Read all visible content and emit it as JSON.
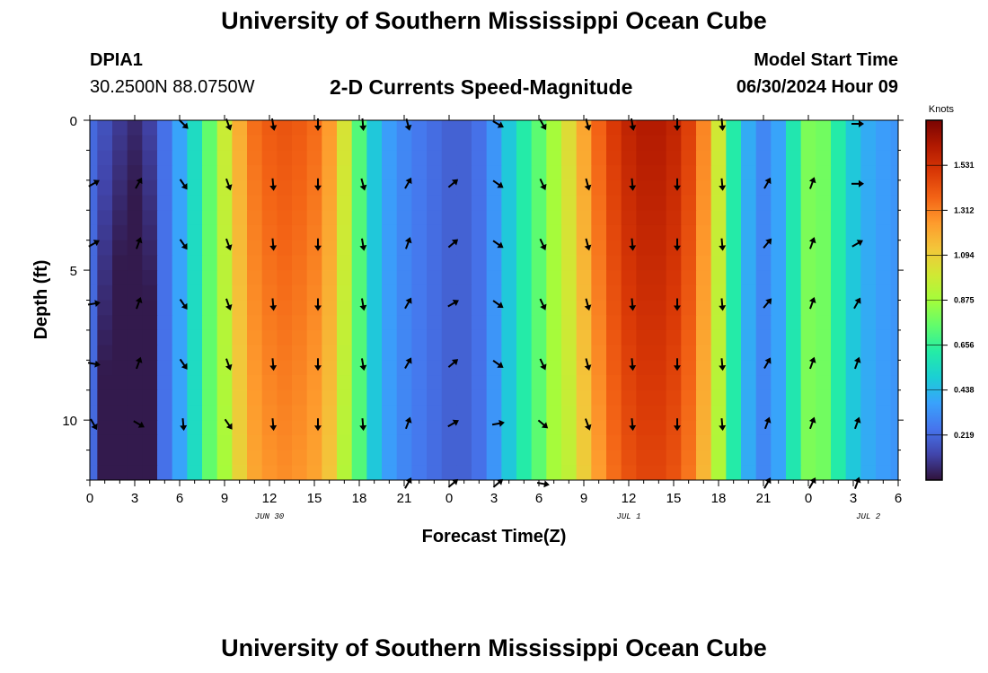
{
  "header": {
    "title": "University of Southern Mississippi Ocean Cube",
    "station_id": "DPIA1",
    "coordinates": "30.2500N  88.0750W",
    "subtitle": "2-D Currents Speed-Magnitude",
    "model_start_label": "Model Start Time",
    "model_start_value": "06/30/2024 Hour 09"
  },
  "footer": {
    "title": "University of Southern Mississippi Ocean Cube"
  },
  "colors": {
    "palette": [
      "#30123b",
      "#4145ab",
      "#4675ed",
      "#39a2fc",
      "#1bcfd4",
      "#24eca6",
      "#61fc6c",
      "#a4fc3b",
      "#d1e834",
      "#f3c63a",
      "#fe9b2d",
      "#f36315",
      "#d93806",
      "#b11901",
      "#7a0402"
    ]
  },
  "chart_data": {
    "type": "heatmap",
    "xlabel": "Forecast Time(Z)",
    "ylabel": "Depth (ft)",
    "x_range_hours": [
      0,
      54
    ],
    "y_range_ft": [
      0,
      12
    ],
    "x_ticks": [
      {
        "h": 0,
        "label": "0"
      },
      {
        "h": 3,
        "label": "3"
      },
      {
        "h": 6,
        "label": "6"
      },
      {
        "h": 9,
        "label": "9"
      },
      {
        "h": 12,
        "label": "12"
      },
      {
        "h": 15,
        "label": "15"
      },
      {
        "h": 18,
        "label": "18"
      },
      {
        "h": 21,
        "label": "21"
      },
      {
        "h": 24,
        "label": "0"
      },
      {
        "h": 27,
        "label": "3"
      },
      {
        "h": 30,
        "label": "6"
      },
      {
        "h": 33,
        "label": "9"
      },
      {
        "h": 36,
        "label": "12"
      },
      {
        "h": 39,
        "label": "15"
      },
      {
        "h": 42,
        "label": "18"
      },
      {
        "h": 45,
        "label": "21"
      },
      {
        "h": 48,
        "label": "0"
      },
      {
        "h": 51,
        "label": "3"
      },
      {
        "h": 54,
        "label": "6"
      }
    ],
    "day_labels": [
      {
        "h": 12,
        "label": "JUN 30"
      },
      {
        "h": 36,
        "label": "JUL 1"
      },
      {
        "h": 52,
        "label": "JUL 2"
      }
    ],
    "y_ticks": [
      {
        "v": 0,
        "label": "0"
      },
      {
        "v": 5,
        "label": "5"
      },
      {
        "v": 10,
        "label": "10"
      }
    ],
    "colorbar": {
      "unit": "Knots",
      "min": 0.0,
      "max": 1.75,
      "ticks": [
        {
          "v": 0.219,
          "label": "0.219"
        },
        {
          "v": 0.438,
          "label": "0.438"
        },
        {
          "v": 0.656,
          "label": "0.656"
        },
        {
          "v": 0.875,
          "label": "0.875"
        },
        {
          "v": 1.094,
          "label": "1.094"
        },
        {
          "v": 1.312,
          "label": "1.312"
        },
        {
          "v": 1.531,
          "label": "1.531"
        }
      ]
    },
    "speed_profile_knots": [
      0.22,
      0.16,
      0.1,
      0.06,
      0.12,
      0.24,
      0.38,
      0.55,
      0.75,
      0.98,
      1.2,
      1.35,
      1.4,
      1.42,
      1.4,
      1.36,
      1.25,
      1.02,
      0.72,
      0.48,
      0.36,
      0.3,
      0.26,
      0.23,
      0.2,
      0.2,
      0.24,
      0.34,
      0.48,
      0.62,
      0.74,
      0.88,
      1.05,
      1.22,
      1.38,
      1.5,
      1.58,
      1.62,
      1.62,
      1.58,
      1.48,
      1.3,
      1.0,
      0.62,
      0.4,
      0.3,
      0.38,
      0.6,
      0.8,
      0.78,
      0.62,
      0.48,
      0.4,
      0.36,
      0.34
    ],
    "arrow_depths_ft": [
      0,
      2,
      4,
      6,
      8,
      10,
      12
    ],
    "arrow_hours": [
      0,
      3,
      6,
      9,
      12,
      15,
      18,
      21,
      24,
      27,
      30,
      33,
      36,
      39,
      42,
      45,
      48,
      51,
      54
    ],
    "arrow_dirs_deg": [
      [
        null,
        null,
        135,
        160,
        170,
        180,
        175,
        165,
        null,
        120,
        150,
        165,
        170,
        180,
        175,
        null,
        null,
        90,
        null
      ],
      [
        60,
        30,
        145,
        160,
        175,
        180,
        165,
        30,
        50,
        125,
        155,
        165,
        175,
        180,
        175,
        30,
        20,
        90,
        null
      ],
      [
        60,
        20,
        145,
        160,
        175,
        180,
        170,
        20,
        50,
        125,
        155,
        165,
        175,
        180,
        175,
        40,
        20,
        60,
        null
      ],
      [
        80,
        20,
        145,
        160,
        175,
        180,
        170,
        30,
        60,
        125,
        155,
        165,
        175,
        180,
        175,
        40,
        20,
        30,
        null
      ],
      [
        100,
        20,
        145,
        160,
        175,
        180,
        170,
        30,
        50,
        125,
        155,
        165,
        175,
        180,
        175,
        30,
        20,
        20,
        null
      ],
      [
        150,
        120,
        175,
        145,
        175,
        180,
        175,
        20,
        60,
        80,
        130,
        160,
        175,
        180,
        175,
        20,
        20,
        20,
        null
      ],
      [
        null,
        null,
        null,
        null,
        null,
        null,
        null,
        30,
        50,
        50,
        100,
        null,
        null,
        null,
        null,
        30,
        30,
        20,
        null
      ]
    ]
  }
}
